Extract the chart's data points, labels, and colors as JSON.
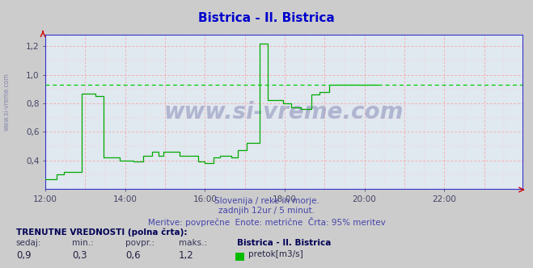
{
  "title": "Bistrica - Il. Bistrica",
  "title_color": "#0000cc",
  "bg_color": "#cccccc",
  "plot_bg_color": "#e0e8f0",
  "grid_color_major": "#ff9999",
  "grid_color_minor": "#ffcccc",
  "line_color": "#00aa00",
  "avg_line_color": "#00cc00",
  "avg_line_value": 0.93,
  "xlim": [
    0,
    287
  ],
  "ylim": [
    0.2,
    1.28
  ],
  "yticks": [
    0.4,
    0.6,
    0.8,
    1.0,
    1.2
  ],
  "ytick_labels": [
    "0,4",
    "0,6",
    "0,8",
    "1,0",
    "1,2"
  ],
  "xtick_labels": [
    "12:00",
    "14:00",
    "16:00",
    "18:00",
    "20:00",
    "22:00"
  ],
  "xtick_positions": [
    0,
    48,
    96,
    144,
    192,
    240
  ],
  "subtitle1": "Slovenija / reke in morje.",
  "subtitle2": "zadnjih 12ur / 5 minut.",
  "subtitle3": "Meritve: povprečne  Enote: metrične  Črta: 95% meritev",
  "subtitle_color": "#4444aa",
  "footer_title": "TRENUTNE VREDNOSTI (polna črta):",
  "footer_labels": [
    "sedaj:",
    "min.:",
    "povpr.:",
    "maks.:"
  ],
  "footer_values": [
    "0,9",
    "0,3",
    "0,6",
    "1,2"
  ],
  "footer_station": "Bistrica - Il. Bistrica",
  "footer_legend_label": "pretok[m3/s]",
  "footer_legend_color": "#00bb00",
  "watermark_text": "www.si-vreme.com",
  "axis_color": "#3333cc",
  "tick_color": "#444466",
  "spine_lw": 0.8,
  "data_y": [
    0.27,
    0.27,
    0.27,
    0.27,
    0.27,
    0.27,
    0.27,
    0.3,
    0.3,
    0.3,
    0.3,
    0.32,
    0.32,
    0.32,
    0.32,
    0.32,
    0.32,
    0.32,
    0.32,
    0.32,
    0.32,
    0.32,
    0.87,
    0.87,
    0.87,
    0.87,
    0.87,
    0.87,
    0.87,
    0.87,
    0.85,
    0.85,
    0.85,
    0.85,
    0.85,
    0.42,
    0.42,
    0.42,
    0.42,
    0.42,
    0.42,
    0.42,
    0.42,
    0.42,
    0.42,
    0.4,
    0.4,
    0.4,
    0.4,
    0.4,
    0.4,
    0.4,
    0.4,
    0.39,
    0.39,
    0.39,
    0.39,
    0.39,
    0.39,
    0.43,
    0.43,
    0.43,
    0.43,
    0.43,
    0.46,
    0.46,
    0.46,
    0.46,
    0.43,
    0.43,
    0.43,
    0.46,
    0.46,
    0.46,
    0.46,
    0.46,
    0.46,
    0.46,
    0.46,
    0.46,
    0.46,
    0.43,
    0.43,
    0.43,
    0.43,
    0.43,
    0.43,
    0.43,
    0.43,
    0.43,
    0.43,
    0.43,
    0.39,
    0.39,
    0.39,
    0.39,
    0.38,
    0.38,
    0.38,
    0.38,
    0.38,
    0.42,
    0.42,
    0.42,
    0.42,
    0.43,
    0.43,
    0.43,
    0.43,
    0.43,
    0.43,
    0.43,
    0.42,
    0.42,
    0.42,
    0.42,
    0.47,
    0.47,
    0.47,
    0.47,
    0.47,
    0.52,
    0.52,
    0.52,
    0.52,
    0.52,
    0.52,
    0.52,
    0.52,
    1.22,
    1.22,
    1.22,
    1.22,
    1.22,
    0.82,
    0.82,
    0.82,
    0.82,
    0.82,
    0.82,
    0.82,
    0.82,
    0.82,
    0.8,
    0.8,
    0.8,
    0.8,
    0.8,
    0.77,
    0.77,
    0.77,
    0.77,
    0.77,
    0.77,
    0.76,
    0.76,
    0.76,
    0.76,
    0.76,
    0.76,
    0.86,
    0.86,
    0.86,
    0.86,
    0.86,
    0.88,
    0.88,
    0.88,
    0.88,
    0.88,
    0.88,
    0.93,
    0.93,
    0.93,
    0.93,
    0.93,
    0.93,
    0.93,
    0.93,
    0.93,
    0.93,
    0.93,
    0.93,
    0.93,
    0.93,
    0.93,
    0.93,
    0.93,
    0.93,
    0.93,
    0.93,
    0.93,
    0.93,
    0.93,
    0.93,
    0.93,
    0.93,
    0.93,
    0.93,
    0.93,
    0.93
  ]
}
